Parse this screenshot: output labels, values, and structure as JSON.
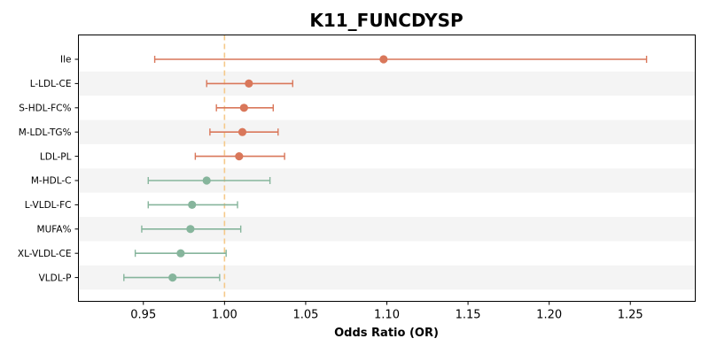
{
  "chart_data": {
    "type": "scatter",
    "subtype": "forest-plot",
    "title": "K11_FUNCDYSP",
    "xlabel": "Odds Ratio (OR)",
    "ylabel": "",
    "xlim": [
      0.91,
      1.29
    ],
    "xticks": [
      "0.95",
      "1.00",
      "1.05",
      "1.10",
      "1.15",
      "1.20",
      "1.25"
    ],
    "reference_line": {
      "x": 1.0,
      "style": "dashed",
      "color": "#f5c98a"
    },
    "colors": {
      "positive": "#d9775a",
      "negative": "#86b59c",
      "band": "#f4f4f4"
    },
    "grid": false,
    "legend": "none",
    "rows": [
      {
        "label": "Ile",
        "or": 1.098,
        "lower": 0.957,
        "upper": 1.26
      },
      {
        "label": "L-LDL-CE",
        "or": 1.015,
        "lower": 0.989,
        "upper": 1.042
      },
      {
        "label": "S-HDL-FC%",
        "or": 1.012,
        "lower": 0.995,
        "upper": 1.03
      },
      {
        "label": "M-LDL-TG%",
        "or": 1.011,
        "lower": 0.991,
        "upper": 1.033
      },
      {
        "label": "LDL-PL",
        "or": 1.009,
        "lower": 0.982,
        "upper": 1.037
      },
      {
        "label": "M-HDL-C",
        "or": 0.989,
        "lower": 0.953,
        "upper": 1.028
      },
      {
        "label": "L-VLDL-FC",
        "or": 0.98,
        "lower": 0.953,
        "upper": 1.008
      },
      {
        "label": "MUFA%",
        "or": 0.979,
        "lower": 0.949,
        "upper": 1.01
      },
      {
        "label": "XL-VLDL-CE",
        "or": 0.973,
        "lower": 0.945,
        "upper": 1.001
      },
      {
        "label": "VLDL-P",
        "or": 0.968,
        "lower": 0.938,
        "upper": 0.997
      }
    ]
  }
}
